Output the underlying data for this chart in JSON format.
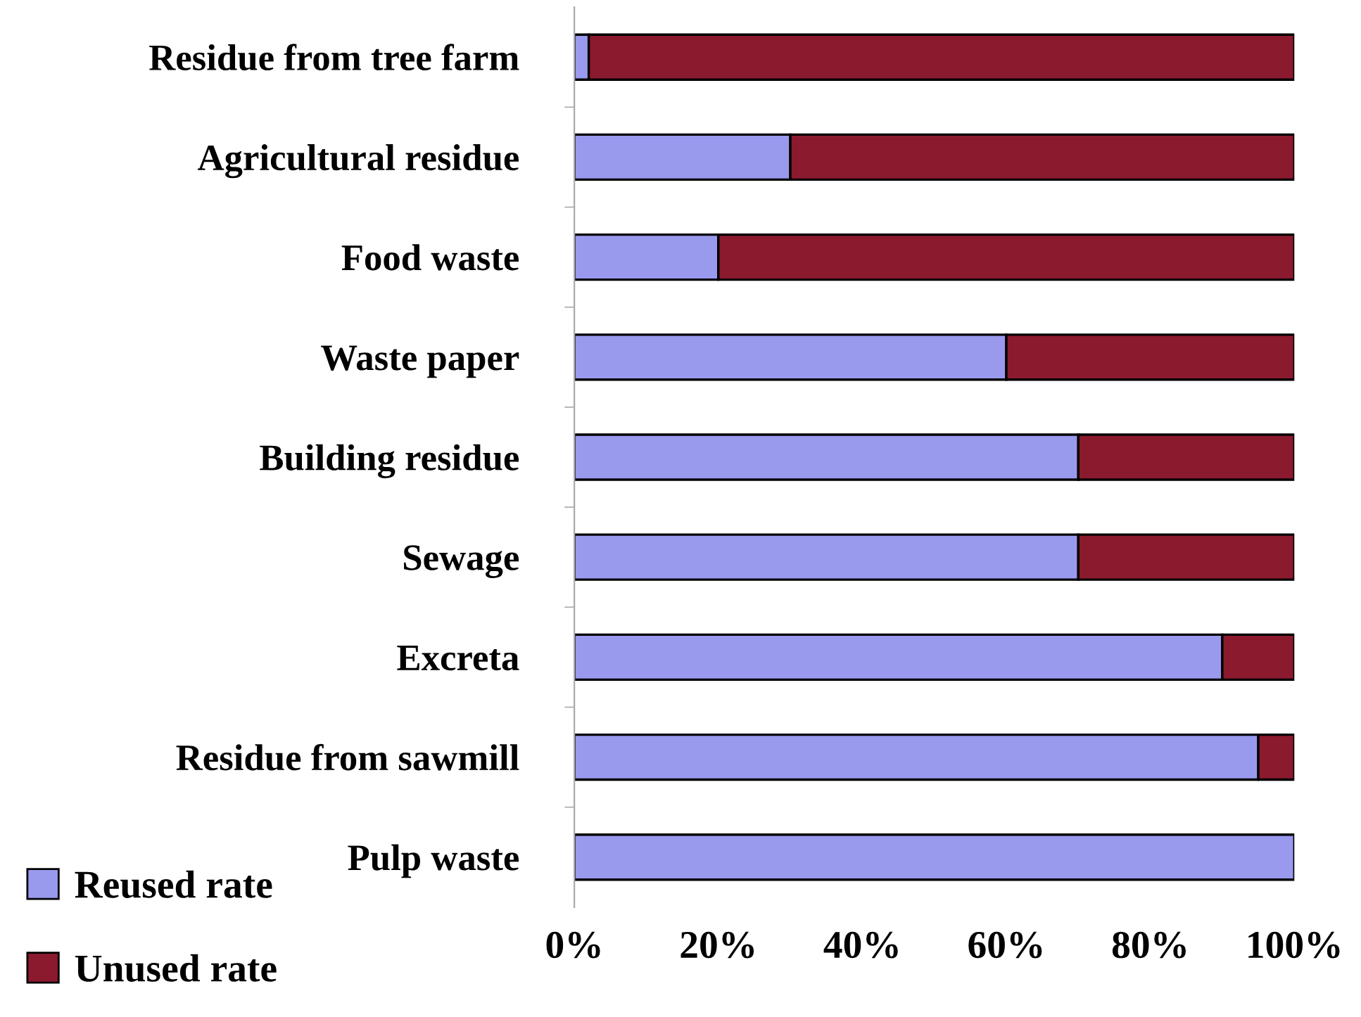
{
  "chart_data": {
    "type": "bar",
    "orientation": "horizontal",
    "stacked": true,
    "categories": [
      "Residue from tree farm",
      "Agricultural residue",
      "Food waste",
      "Waste paper",
      "Building residue",
      "Sewage",
      "Excreta",
      "Residue from sawmill",
      "Pulp waste"
    ],
    "series": [
      {
        "name": "Reused rate",
        "color": "#9999ee",
        "values": [
          2,
          30,
          20,
          60,
          70,
          70,
          90,
          95,
          100
        ]
      },
      {
        "name": "Unused rate",
        "color": "#8b1a2e",
        "values": [
          98,
          70,
          80,
          40,
          30,
          30,
          10,
          5,
          null
        ]
      }
    ],
    "xlim": [
      0,
      100
    ],
    "xticks": [
      {
        "value": 0,
        "label": "0%"
      },
      {
        "value": 20,
        "label": "20%"
      },
      {
        "value": 40,
        "label": "40%"
      },
      {
        "value": 60,
        "label": "60%"
      },
      {
        "value": 80,
        "label": "80%"
      },
      {
        "value": 100,
        "label": "100%"
      }
    ],
    "grid": false,
    "legend": "bottom left"
  }
}
